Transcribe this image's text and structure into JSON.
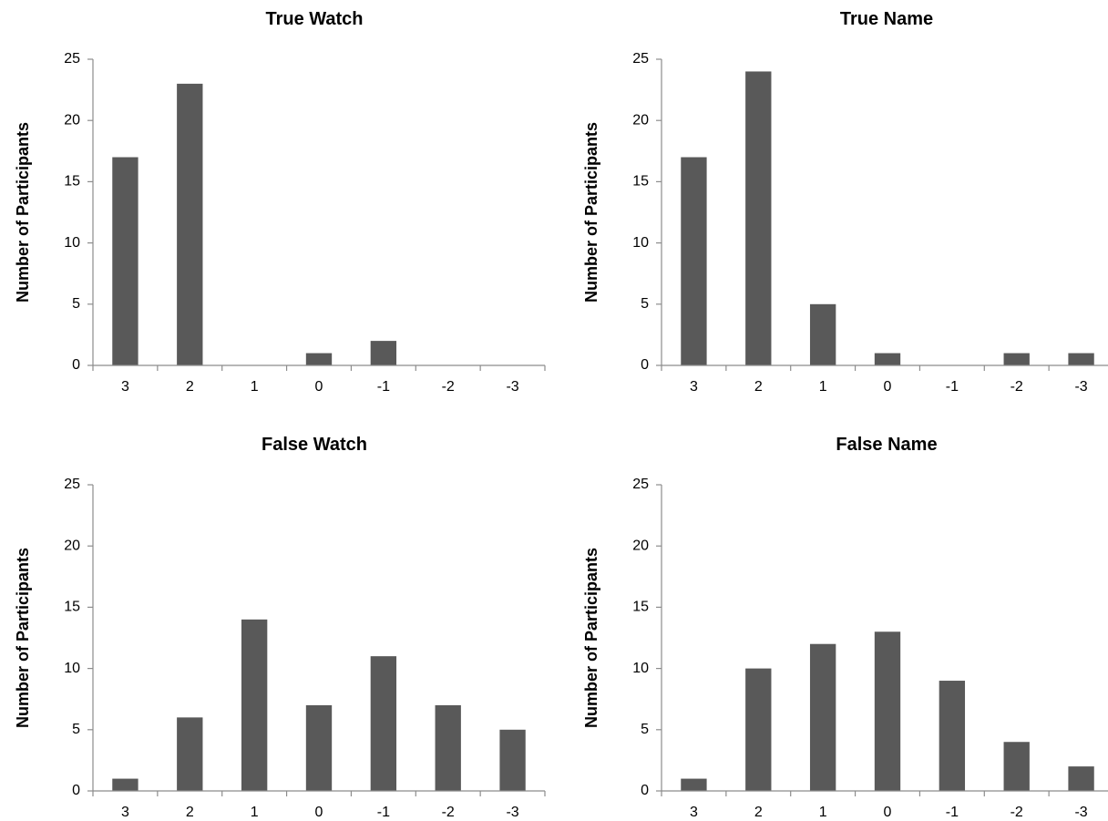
{
  "chart_data": [
    {
      "type": "bar",
      "title": "True Watch",
      "ylabel": "Number of Participants",
      "xlabel": "",
      "categories": [
        "3",
        "2",
        "1",
        "0",
        "-1",
        "-2",
        "-3"
      ],
      "values": [
        17,
        23,
        0,
        1,
        2,
        0,
        0
      ],
      "ylim": [
        0,
        25
      ],
      "yticks": [
        "0",
        "5",
        "10",
        "15",
        "20",
        "25"
      ],
      "grid": false,
      "bar_color": "#595959"
    },
    {
      "type": "bar",
      "title": "True Name",
      "ylabel": "Number of Participants",
      "xlabel": "",
      "categories": [
        "3",
        "2",
        "1",
        "0",
        "-1",
        "-2",
        "-3"
      ],
      "values": [
        17,
        24,
        5,
        1,
        0,
        1,
        1
      ],
      "ylim": [
        0,
        25
      ],
      "yticks": [
        "0",
        "5",
        "10",
        "15",
        "20",
        "25"
      ],
      "grid": false,
      "bar_color": "#595959"
    },
    {
      "type": "bar",
      "title": "False Watch",
      "ylabel": "Number of Participants",
      "xlabel": "",
      "categories": [
        "3",
        "2",
        "1",
        "0",
        "-1",
        "-2",
        "-3"
      ],
      "values": [
        1,
        6,
        14,
        7,
        11,
        7,
        5
      ],
      "ylim": [
        0,
        25
      ],
      "yticks": [
        "0",
        "5",
        "10",
        "15",
        "20",
        "25"
      ],
      "grid": false,
      "bar_color": "#595959"
    },
    {
      "type": "bar",
      "title": "False Name",
      "ylabel": "Number of Participants",
      "xlabel": "",
      "categories": [
        "3",
        "2",
        "1",
        "0",
        "-1",
        "-2",
        "-3"
      ],
      "values": [
        1,
        10,
        12,
        13,
        9,
        4,
        2
      ],
      "ylim": [
        0,
        25
      ],
      "yticks": [
        "0",
        "5",
        "10",
        "15",
        "20",
        "25"
      ],
      "grid": false,
      "bar_color": "#595959"
    }
  ]
}
